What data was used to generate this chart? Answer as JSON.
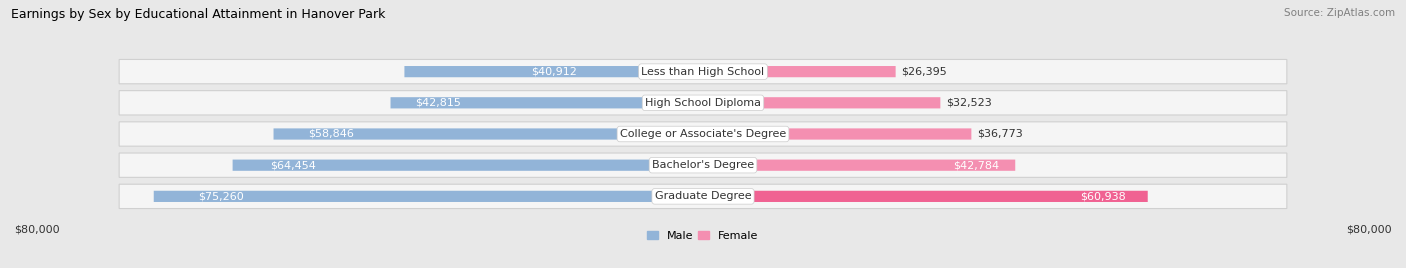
{
  "title": "Earnings by Sex by Educational Attainment in Hanover Park",
  "source": "Source: ZipAtlas.com",
  "categories": [
    "Less than High School",
    "High School Diploma",
    "College or Associate's Degree",
    "Bachelor's Degree",
    "Graduate Degree"
  ],
  "male_values": [
    40912,
    42815,
    58846,
    64454,
    75260
  ],
  "female_values": [
    26395,
    32523,
    36773,
    42784,
    60938
  ],
  "male_color": "#92b4d8",
  "female_color": "#f48fb1",
  "female_color_bright": "#f06292",
  "bg_color": "#e8e8e8",
  "row_bg_color": "#f5f5f5",
  "row_border_color": "#d0d0d0",
  "max_value": 80000,
  "xlabel_left": "$80,000",
  "xlabel_right": "$80,000",
  "legend_male": "Male",
  "legend_female": "Female",
  "title_fontsize": 9,
  "source_fontsize": 7.5,
  "label_fontsize": 8,
  "bar_label_fontsize": 8,
  "category_fontsize": 8
}
